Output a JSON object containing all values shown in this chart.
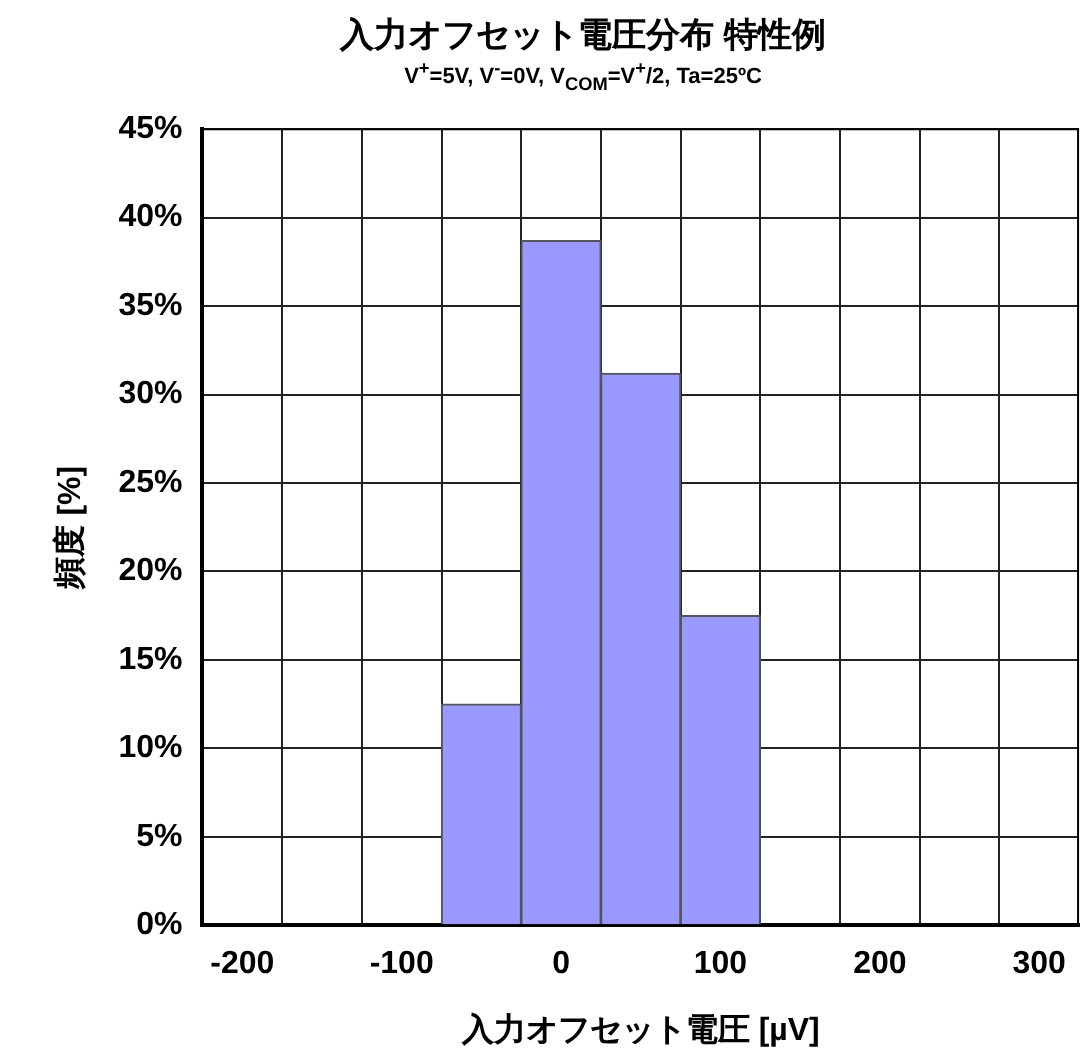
{
  "chart_data": {
    "type": "histogram",
    "title": "入力オフセット電圧分布 特性例",
    "subtitle": "V$^{+}$=5V, V$^{-}$=0V, V$_{COM}$=V$^{+}$/2, Ta=25ºC",
    "xlabel": "入力オフセット電圧 [µV]",
    "ylabel": "頻度 [%]",
    "bins": [
      -225,
      -175,
      -125,
      -75,
      -25,
      25,
      75,
      125,
      175,
      225,
      275,
      325
    ],
    "values": [
      0,
      0,
      0,
      12.5,
      38.7,
      31.2,
      17.5,
      0,
      0,
      0,
      0
    ],
    "color": "#9999ff",
    "xlim": [
      -225,
      325
    ],
    "xticks": [
      {
        "value": -175,
        "label": null
      },
      {
        "value": -125,
        "label": null
      },
      {
        "value": -75,
        "label": null
      },
      {
        "value": -25,
        "label": null
      },
      {
        "value": 25,
        "label": null
      },
      {
        "value": 75,
        "label": null
      },
      {
        "value": 125,
        "label": null
      },
      {
        "value": 175,
        "label": null
      },
      {
        "value": 225,
        "label": null
      },
      {
        "value": 275,
        "label": null
      },
      -200,
      -100,
      0,
      100,
      200,
      300
    ],
    "ylim": [
      0,
      45
    ],
    "yticks": [
      {
        "value": 0,
        "label": "0%"
      },
      {
        "value": 5,
        "label": "5%"
      },
      {
        "value": 10,
        "label": "10%"
      },
      {
        "value": 15,
        "label": "15%"
      },
      {
        "value": 20,
        "label": "20%"
      },
      {
        "value": 25,
        "label": "25%"
      },
      {
        "value": 30,
        "label": "30%"
      },
      {
        "value": 35,
        "label": "35%"
      },
      {
        "value": 40,
        "label": "40%"
      },
      {
        "value": 45,
        "label": "45%"
      }
    ],
    "grid": true,
    "legend": false
  }
}
